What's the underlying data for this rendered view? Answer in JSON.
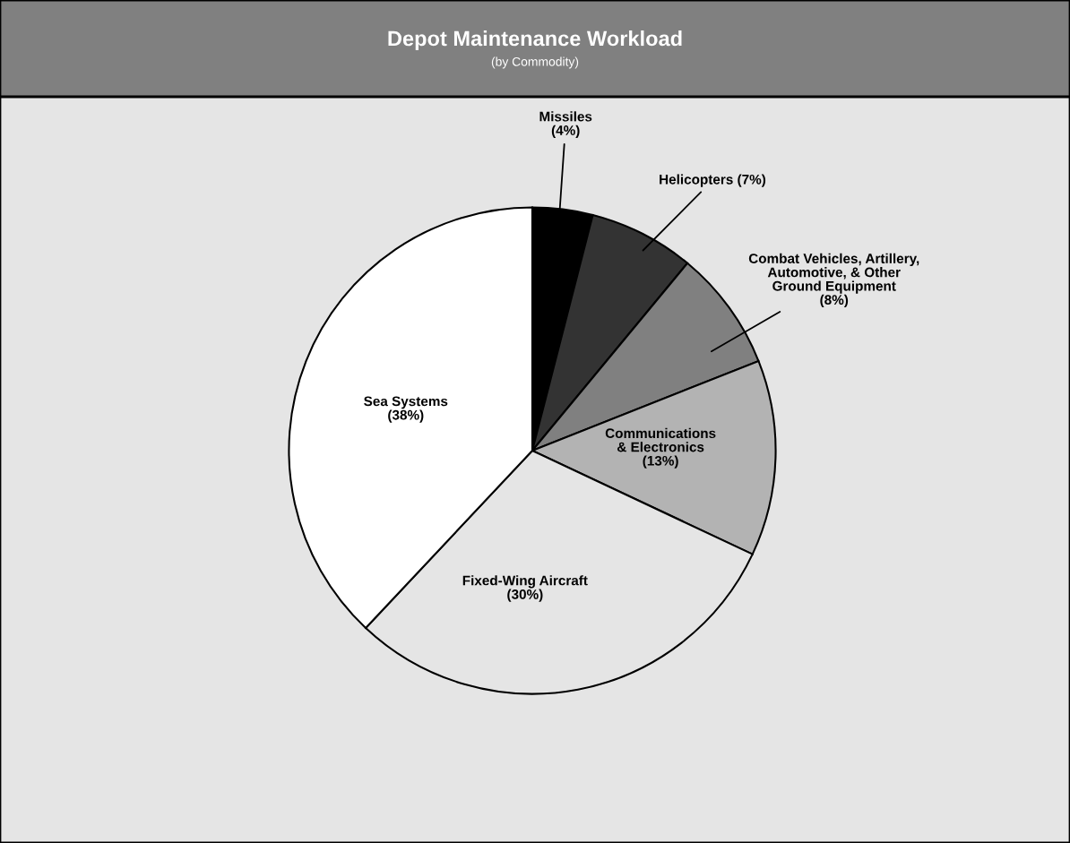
{
  "chart_data": {
    "type": "pie",
    "title": "Depot Maintenance Workload",
    "subtitle": "(by Commodity)",
    "categories": [
      "Missiles",
      "Helicopters",
      "Combat Vehicles, Artillery,\nAutomotive, & Other\nGround Equipment",
      "Communications\n& Electronics",
      "Fixed-Wing Aircraft",
      "Sea Systems"
    ],
    "values": [
      4,
      7,
      8,
      13,
      30,
      38
    ],
    "colors": [
      "#000000",
      "#333333",
      "#808080",
      "#b3b3b3",
      "#e5e5e5",
      "#ffffff"
    ],
    "value_labels": [
      "(4%)",
      "(7%)",
      "(8%)",
      "(13%)",
      "(30%)",
      "(38%)"
    ]
  }
}
